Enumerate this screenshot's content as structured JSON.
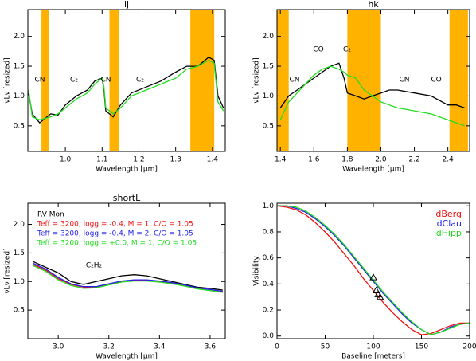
{
  "chart_data": [
    {
      "type": "line",
      "title": "ij",
      "xlabel": "Wavelength [μm]",
      "ylabel": "νLν [resized]",
      "xlim": [
        0.898,
        1.435
      ],
      "ylim": [
        0.07,
        2.45
      ],
      "xticks": [
        {
          "value": 1,
          "label": "1.0"
        },
        1.1,
        1.2,
        1.3,
        1.4
      ],
      "yticks": [
        0.5,
        {
          "value": 1,
          "label": "1.0"
        },
        1.5,
        {
          "value": 2,
          "label": "2.0"
        }
      ],
      "bands": [
        [
          0.935,
          0.955
        ],
        [
          1.12,
          1.145
        ],
        [
          1.34,
          1.405
        ]
      ],
      "band_color": "#ffb300",
      "annotations": [
        "CN",
        "C₂",
        "CN",
        "C₂"
      ],
      "x": [
        0.9,
        0.91,
        0.93,
        0.96,
        0.98,
        1.0,
        1.03,
        1.06,
        1.08,
        1.1,
        1.105,
        1.11,
        1.13,
        1.15,
        1.18,
        1.22,
        1.26,
        1.3,
        1.33,
        1.36,
        1.39,
        1.405,
        1.415,
        1.43
      ],
      "series": [
        {
          "color": "#000000",
          "values": [
            1.05,
            0.7,
            0.55,
            0.7,
            0.68,
            0.85,
            1.0,
            1.1,
            1.25,
            1.3,
            1.1,
            0.75,
            0.65,
            0.85,
            1.05,
            1.15,
            1.25,
            1.4,
            1.5,
            1.5,
            1.65,
            1.6,
            1.0,
            0.8
          ]
        },
        {
          "color": "#22dd22",
          "values": [
            1.1,
            0.65,
            0.6,
            0.65,
            0.7,
            0.8,
            0.95,
            1.05,
            1.2,
            1.3,
            1.15,
            0.8,
            0.7,
            0.8,
            1.0,
            1.1,
            1.2,
            1.3,
            1.45,
            1.5,
            1.6,
            1.55,
            0.9,
            0.75
          ]
        }
      ]
    },
    {
      "type": "line",
      "title": "hk",
      "xlabel": "Wavelength [μm]",
      "ylabel": "νLν [resized]",
      "xlim": [
        1.38,
        2.53
      ],
      "ylim": [
        0.07,
        2.45
      ],
      "xticks": [
        1.4,
        1.6,
        1.8,
        {
          "value": 2,
          "label": "2.0"
        },
        2.2,
        2.4
      ],
      "yticks": [
        0.5,
        {
          "value": 1,
          "label": "1.0"
        },
        1.5,
        {
          "value": 2,
          "label": "2.0"
        }
      ],
      "bands": [
        [
          1.38,
          1.45
        ],
        [
          1.8,
          2.0
        ],
        [
          2.41,
          2.52
        ]
      ],
      "band_color": "#ffb300",
      "annotations": [
        "CO",
        "C₂",
        "CN",
        "CN",
        "CO"
      ],
      "x": [
        1.4,
        1.45,
        1.5,
        1.55,
        1.6,
        1.65,
        1.7,
        1.75,
        1.78,
        1.8,
        1.85,
        1.9,
        1.95,
        2.0,
        2.05,
        2.1,
        2.2,
        2.3,
        2.4,
        2.45,
        2.5
      ],
      "series": [
        {
          "color": "#000000",
          "values": [
            0.8,
            1.0,
            1.1,
            1.2,
            1.3,
            1.4,
            1.5,
            1.55,
            1.3,
            1.05,
            1.0,
            0.95,
            1.0,
            1.05,
            1.1,
            1.1,
            1.05,
            1.0,
            0.85,
            0.85,
            0.8
          ]
        },
        {
          "color": "#22dd22",
          "values": [
            0.6,
            0.9,
            1.05,
            1.2,
            1.35,
            1.45,
            1.5,
            1.45,
            1.4,
            1.35,
            1.3,
            1.1,
            1.0,
            0.9,
            0.85,
            0.8,
            0.75,
            0.7,
            0.6,
            0.55,
            0.5
          ]
        }
      ]
    },
    {
      "type": "line",
      "title": "shortL",
      "xlabel": "Wavelength [μm]",
      "ylabel": "νLν [resized]",
      "xlim": [
        2.88,
        3.66
      ],
      "ylim": [
        0.0,
        2.37
      ],
      "xticks": [
        {
          "value": 3,
          "label": "3.0"
        },
        3.2,
        3.4,
        3.6
      ],
      "yticks": [
        0.5,
        {
          "value": 1,
          "label": "1.0"
        },
        1.5,
        {
          "value": 2,
          "label": "2.0"
        }
      ],
      "annotations": [
        "C₂H₂"
      ],
      "legend": "upper left",
      "x": [
        2.9,
        2.95,
        3.0,
        3.05,
        3.1,
        3.15,
        3.2,
        3.25,
        3.3,
        3.35,
        3.4,
        3.45,
        3.5,
        3.55,
        3.6,
        3.65
      ],
      "series": [
        {
          "name": "RV Mon",
          "color": "#000000",
          "values": [
            1.35,
            1.25,
            1.15,
            1.0,
            0.95,
            1.0,
            1.05,
            1.1,
            1.12,
            1.1,
            1.05,
            1.0,
            0.95,
            0.9,
            0.88,
            0.85
          ]
        },
        {
          "name": "Teff = 3200, logg = -0.4, M = 1, C/O = 1.05",
          "color": "#ee1111",
          "values": [
            1.3,
            1.2,
            1.05,
            0.95,
            0.9,
            0.9,
            0.95,
            1.0,
            1.02,
            1.02,
            1.0,
            0.97,
            0.93,
            0.88,
            0.85,
            0.82
          ]
        },
        {
          "name": "Teff = 3200, logg = -0.4, M = 2, C/O = 1.05",
          "color": "#2222ee",
          "values": [
            1.32,
            1.22,
            1.07,
            0.96,
            0.91,
            0.91,
            0.96,
            1.01,
            1.03,
            1.03,
            1.01,
            0.98,
            0.94,
            0.89,
            0.86,
            0.83
          ]
        },
        {
          "name": "Teff = 3200, logg = +0.0, M = 1, C/O = 1.05",
          "color": "#22dd22",
          "values": [
            1.28,
            1.18,
            1.03,
            0.93,
            0.88,
            0.89,
            0.94,
            0.99,
            1.01,
            1.01,
            0.99,
            0.96,
            0.92,
            0.87,
            0.84,
            0.81
          ]
        }
      ]
    },
    {
      "type": "line",
      "xlabel": "Baseline [meters]",
      "ylabel": "Visibility",
      "xlim": [
        0,
        200
      ],
      "ylim": [
        -0.02,
        1.02
      ],
      "xticks": [
        0,
        50,
        100,
        150,
        200
      ],
      "yticks": [
        {
          "value": 0,
          "label": "0.0"
        },
        0.2,
        0.4,
        0.6,
        0.8,
        {
          "value": 1,
          "label": "1.0"
        }
      ],
      "legend": "upper right",
      "x": [
        0,
        10,
        20,
        30,
        40,
        50,
        60,
        70,
        80,
        90,
        100,
        110,
        120,
        130,
        140,
        150,
        160,
        170,
        180,
        190,
        200
      ],
      "series": [
        {
          "name": "dBerg",
          "color": "#ee1111",
          "values": [
            1.0,
            0.99,
            0.97,
            0.93,
            0.87,
            0.8,
            0.72,
            0.63,
            0.54,
            0.44,
            0.35,
            0.26,
            0.18,
            0.11,
            0.05,
            0.01,
            0.02,
            0.05,
            0.08,
            0.1,
            0.1
          ]
        },
        {
          "name": "dClau",
          "color": "#2222ee",
          "values": [
            1.0,
            1.0,
            0.98,
            0.95,
            0.9,
            0.84,
            0.77,
            0.69,
            0.6,
            0.51,
            0.42,
            0.33,
            0.25,
            0.17,
            0.1,
            0.05,
            0.01,
            0.03,
            0.07,
            0.09,
            0.1
          ]
        },
        {
          "name": "dHipp",
          "color": "#22dd22",
          "values": [
            1.0,
            1.0,
            0.99,
            0.96,
            0.91,
            0.85,
            0.78,
            0.7,
            0.61,
            0.52,
            0.43,
            0.34,
            0.26,
            0.18,
            0.11,
            0.05,
            0.01,
            0.03,
            0.06,
            0.09,
            0.1
          ]
        }
      ],
      "scatter": {
        "color": "#000000",
        "x": [
          100,
          103,
          105,
          107
        ],
        "y": [
          0.45,
          0.35,
          0.32,
          0.3
        ]
      }
    }
  ]
}
